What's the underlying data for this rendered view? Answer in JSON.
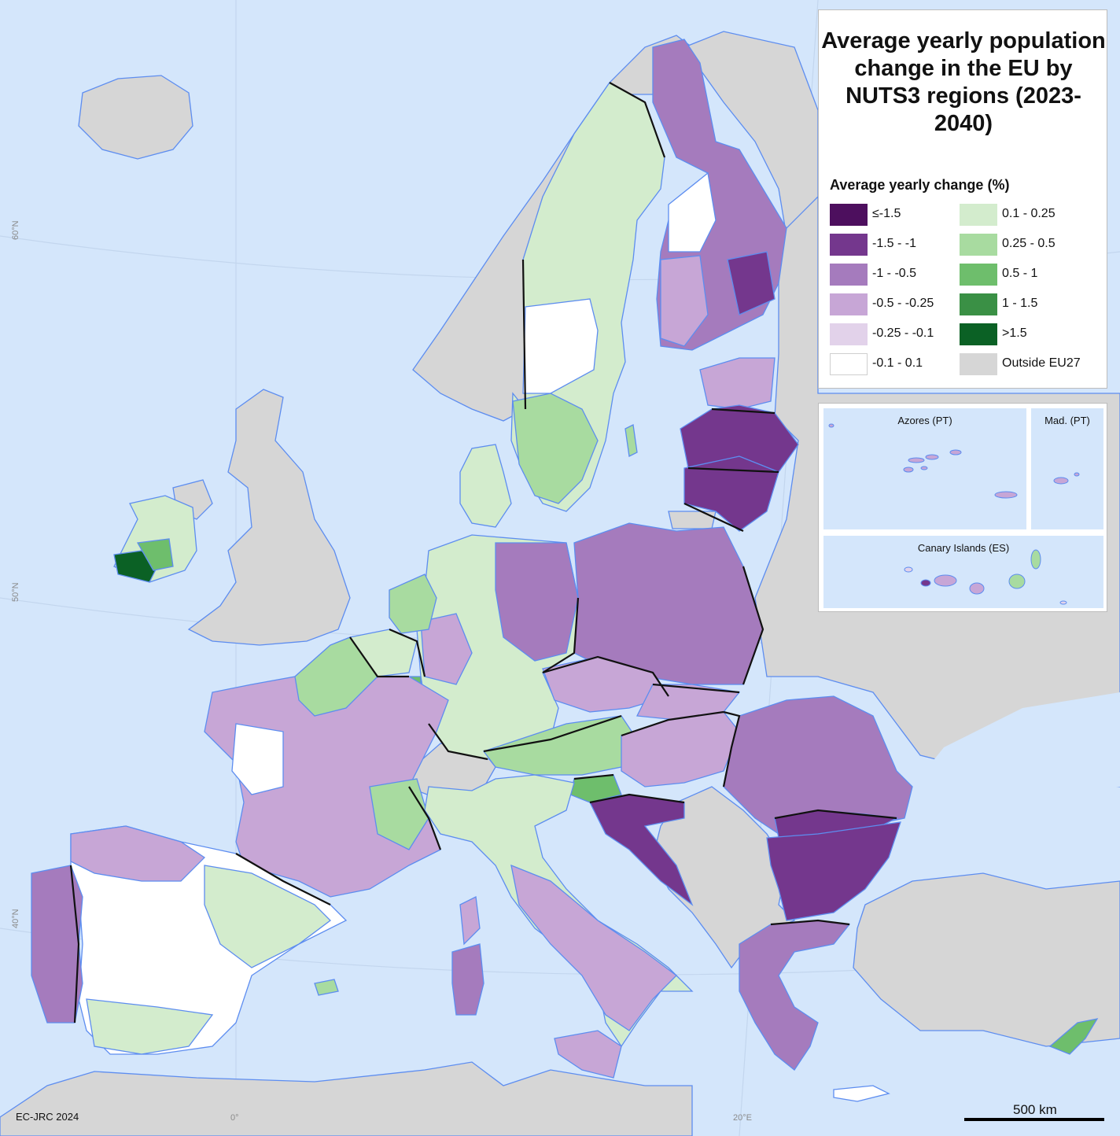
{
  "title": "Average yearly population change in the EU by NUTS3 regions (2023-2040)",
  "legend": {
    "heading": "Average yearly change (%)",
    "items": [
      {
        "label": "≤-1.5",
        "color": "#4d0f5e"
      },
      {
        "label": "-1.5 - -1",
        "color": "#74378d"
      },
      {
        "label": "-1 - -0.5",
        "color": "#a57bbd"
      },
      {
        "label": "-0.5 - -0.25",
        "color": "#c7a6d6"
      },
      {
        "label": "-0.25 - -0.1",
        "color": "#e2d2ea"
      },
      {
        "label": "-0.1 - 0.1",
        "color": "#ffffff"
      },
      {
        "label": "0.1 - 0.25",
        "color": "#d3eccd"
      },
      {
        "label": "0.25 - 0.5",
        "color": "#a8dba0"
      },
      {
        "label": "0.5 - 1",
        "color": "#6ebe6c"
      },
      {
        "label": "1 - 1.5",
        "color": "#3a9045"
      },
      {
        "label": ">1.5",
        "color": "#0b6125"
      },
      {
        "label": "Outside EU27",
        "color": "#d6d6d6"
      }
    ]
  },
  "insets": {
    "azores": "Azores (PT)",
    "madeira": "Mad. (PT)",
    "canary": "Canary Islands (ES)"
  },
  "graticule": {
    "lat60": "60°N",
    "lat50": "50°N",
    "lat40": "40°N",
    "lon0": "0°",
    "lon20": "20°E"
  },
  "credit": "EC-JRC 2024",
  "scale": "500 km",
  "colors": {
    "sea": "#d4e6fb",
    "outside": "#d6d6d6",
    "coast": "#5d8df0",
    "border": "#111111"
  }
}
